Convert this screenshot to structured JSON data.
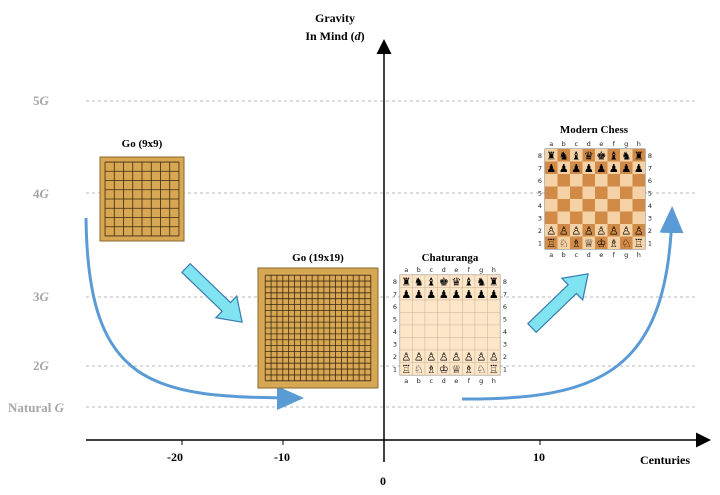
{
  "y_axis": {
    "title_line1": "Gravity",
    "title_line2_prefix": "In Mind (",
    "title_line2_var": "d",
    "title_line2_suffix": ")",
    "levels": [
      {
        "num": "5",
        "var": "G"
      },
      {
        "num": "4",
        "var": "G"
      },
      {
        "num": "3",
        "var": "G"
      },
      {
        "num": "2",
        "var": "G"
      },
      {
        "num": "Natural ",
        "var": "G"
      }
    ]
  },
  "x_axis": {
    "title": "Centuries",
    "ticks": [
      "-20",
      "-10",
      "0",
      "10"
    ]
  },
  "boards": {
    "go9": {
      "title": "Go (9x9)",
      "size": 9
    },
    "go19": {
      "title": "Go (19x19)",
      "size": 19
    },
    "chaturanga": {
      "title": "Chaturanga",
      "files": [
        "a",
        "b",
        "c",
        "d",
        "e",
        "f",
        "g",
        "h"
      ],
      "ranks": [
        "8",
        "7",
        "6",
        "5",
        "4",
        "3",
        "2",
        "1"
      ],
      "light": "#fde5c8",
      "dark": "#fde5c8",
      "black_back": [
        "♜",
        "♞",
        "♝",
        "♚",
        "♛",
        "♝",
        "♞",
        "♜"
      ],
      "white_back": [
        "♖",
        "♘",
        "♗",
        "♔",
        "♕",
        "♗",
        "♘",
        "♖"
      ]
    },
    "chess": {
      "title": "Modern Chess",
      "files": [
        "a",
        "b",
        "c",
        "d",
        "e",
        "f",
        "g",
        "h"
      ],
      "ranks": [
        "8",
        "7",
        "6",
        "5",
        "4",
        "3",
        "2",
        "1"
      ],
      "light": "#f5d2a6",
      "dark": "#d18b47",
      "black_back": [
        "♜",
        "♞",
        "♝",
        "♛",
        "♚",
        "♝",
        "♞",
        "♜"
      ],
      "white_back": [
        "♖",
        "♘",
        "♗",
        "♕",
        "♔",
        "♗",
        "♘",
        "♖"
      ]
    },
    "pawn_black": "♟",
    "pawn_white": "♙"
  },
  "colors": {
    "go_board": "#d7a754",
    "go_grid": "#3c2a12",
    "curve": "#5b9bd5",
    "arrow_fill": "#7fe3f0",
    "arrow_stroke": "#3a78b0",
    "gridline": "#b8b8b8"
  }
}
